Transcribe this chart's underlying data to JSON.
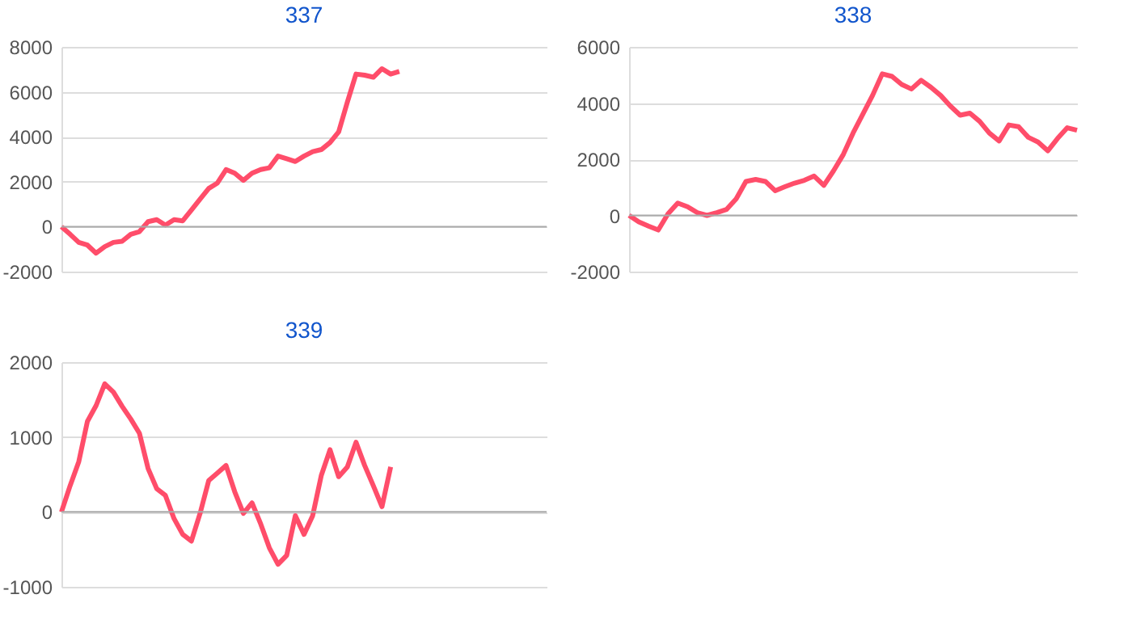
{
  "chart_data": [
    {
      "type": "line",
      "title": "337",
      "categories": [
        null,
        null,
        null,
        null,
        null,
        null,
        null,
        null,
        null,
        null,
        null,
        null,
        null,
        null,
        null,
        null,
        null,
        null,
        null,
        null,
        null,
        null,
        null,
        null,
        null,
        null,
        null,
        null,
        null,
        null,
        null,
        null,
        null,
        null,
        null,
        null,
        null,
        null,
        null,
        null,
        null,
        null,
        null,
        null,
        null,
        null,
        null,
        null,
        null,
        null,
        null,
        null,
        null,
        null,
        null,
        null,
        null
      ],
      "series": [
        {
          "color": "#ff4d6a",
          "values": [
            0,
            -340,
            -700,
            -820,
            -1180,
            -890,
            -700,
            -650,
            -340,
            -220,
            220,
            310,
            70,
            310,
            260,
            740,
            1220,
            1700,
            1940,
            2540,
            2380,
            2060,
            2380,
            2540,
            2620,
            3140,
            3020,
            2900,
            3140,
            3340,
            3430,
            3740,
            4220,
            5540,
            6790,
            6740,
            6650,
            7030,
            6790,
            6910,
            null,
            null,
            null,
            null,
            null,
            null,
            null,
            null,
            null,
            null,
            null,
            null,
            null,
            null,
            null,
            null,
            null
          ]
        }
      ],
      "ylim": [
        -2000,
        8000
      ],
      "yticks": [
        -2000,
        0,
        2000,
        4000,
        6000,
        8000
      ],
      "grid": "y",
      "tick_labels": "y",
      "line_style": "solid",
      "marker": "none",
      "ref_lines": [
        {
          "axis": "y",
          "value": 0,
          "color": "#aaaaaa"
        }
      ]
    },
    {
      "type": "line",
      "title": "338",
      "categories": [
        null,
        null,
        null,
        null,
        null,
        null,
        null,
        null,
        null,
        null,
        null,
        null,
        null,
        null,
        null,
        null,
        null,
        null,
        null,
        null,
        null,
        null,
        null,
        null,
        null,
        null,
        null,
        null,
        null,
        null,
        null,
        null,
        null,
        null,
        null,
        null,
        null,
        null,
        null,
        null,
        null,
        null,
        null,
        null,
        null,
        null,
        null
      ],
      "series": [
        {
          "color": "#ff4d6a",
          "values": [
            0,
            -230,
            -380,
            -520,
            60,
            440,
            310,
            100,
            0,
            100,
            210,
            590,
            1210,
            1280,
            1210,
            880,
            1020,
            1150,
            1250,
            1400,
            1070,
            1590,
            2170,
            2930,
            3600,
            4270,
            5040,
            4950,
            4660,
            4500,
            4810,
            4560,
            4270,
            3890,
            3570,
            3640,
            3350,
            2930,
            2650,
            3220,
            3160,
            2780,
            2610,
            2300,
            2740,
            3120,
            3030
          ]
        }
      ],
      "ylim": [
        -2000,
        6000
      ],
      "yticks": [
        -2000,
        0,
        2000,
        4000,
        6000
      ],
      "grid": "y",
      "tick_labels": "y",
      "line_style": "solid",
      "marker": "none",
      "ref_lines": [
        {
          "axis": "y",
          "value": 0,
          "color": "#aaaaaa"
        }
      ]
    },
    {
      "type": "line",
      "title": "339",
      "categories": [
        null,
        null,
        null,
        null,
        null,
        null,
        null,
        null,
        null,
        null,
        null,
        null,
        null,
        null,
        null,
        null,
        null,
        null,
        null,
        null,
        null,
        null,
        null,
        null,
        null,
        null,
        null,
        null,
        null,
        null,
        null,
        null,
        null,
        null,
        null,
        null,
        null,
        null,
        null,
        null,
        null,
        null,
        null,
        null,
        null,
        null,
        null,
        null,
        null,
        null,
        null,
        null,
        null,
        null,
        null,
        null,
        null
      ],
      "series": [
        {
          "color": "#ff4d6a",
          "values": [
            0,
            350,
            670,
            1210,
            1420,
            1710,
            1600,
            1410,
            1240,
            1050,
            580,
            310,
            220,
            -90,
            -300,
            -390,
            -20,
            420,
            520,
            620,
            270,
            -20,
            120,
            -160,
            -480,
            -700,
            -580,
            -50,
            -300,
            -50,
            490,
            830,
            470,
            600,
            930,
            620,
            350,
            70,
            600,
            null,
            null,
            null,
            null,
            null,
            null,
            null,
            null,
            null,
            null,
            null,
            null,
            null,
            null,
            null,
            null,
            null,
            null
          ]
        }
      ],
      "ylim": [
        -1000,
        2000
      ],
      "yticks": [
        -1000,
        0,
        1000,
        2000
      ],
      "grid": "y",
      "tick_labels": "y",
      "line_style": "solid",
      "marker": "none",
      "ref_lines": [
        {
          "axis": "y",
          "value": 0,
          "color": "#aaaaaa"
        }
      ]
    }
  ]
}
